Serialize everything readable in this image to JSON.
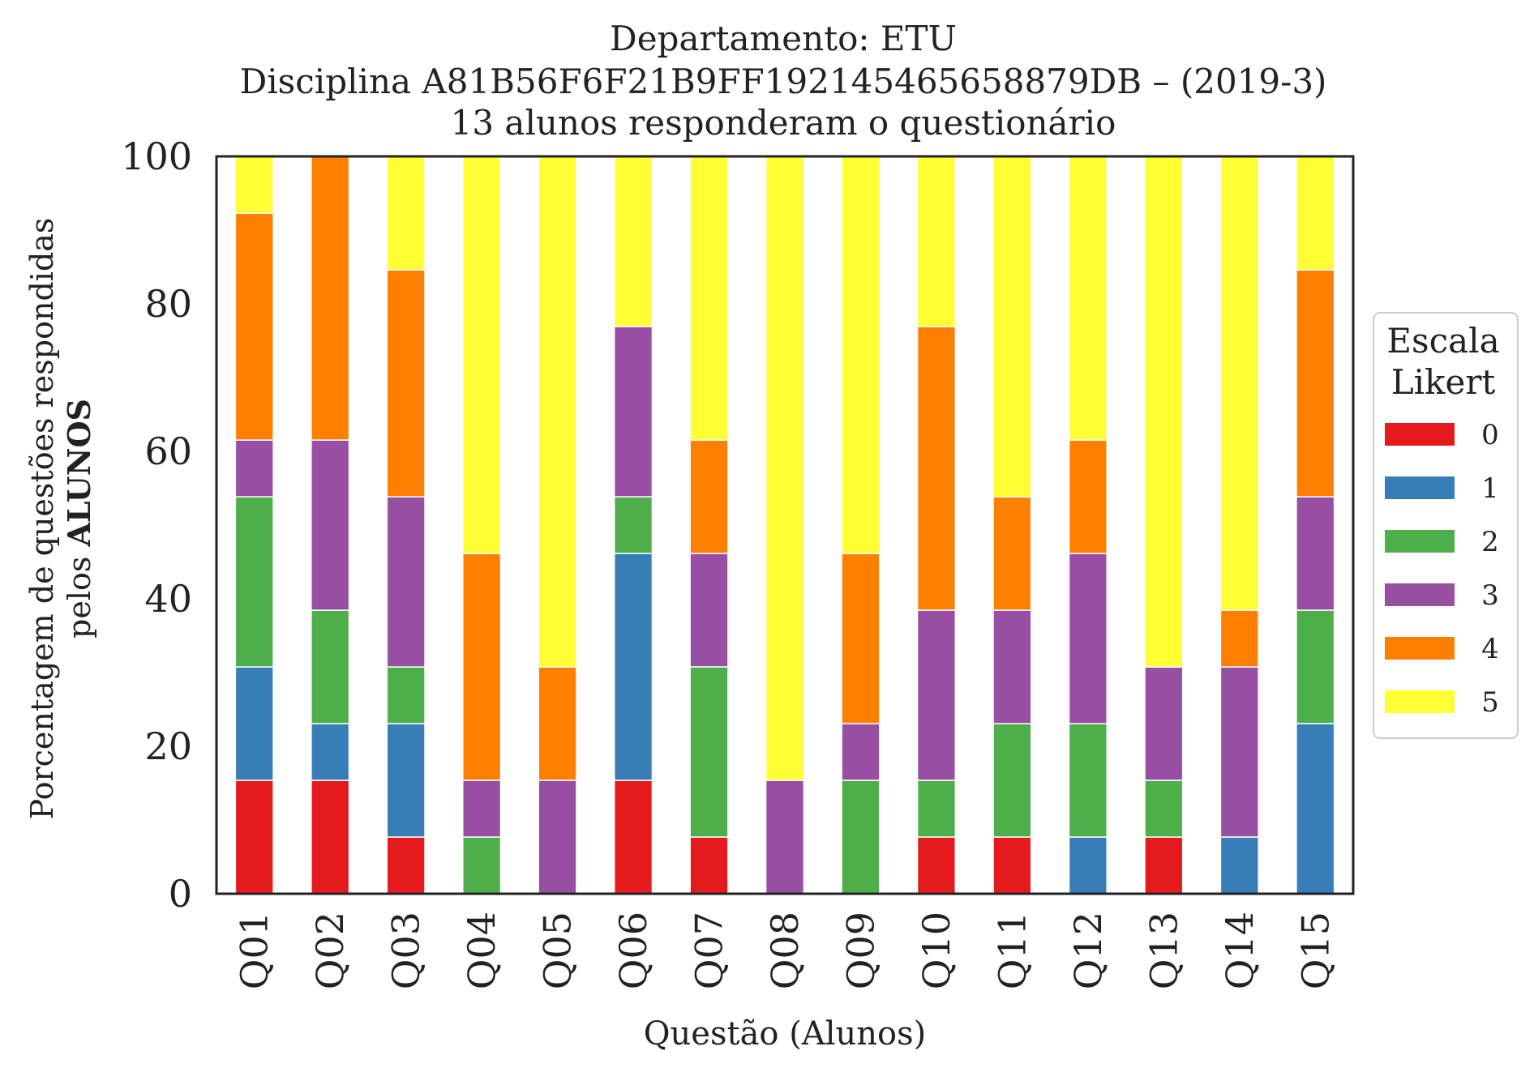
{
  "chart_data": {
    "type": "bar",
    "stacked": true,
    "title": [
      "Departamento: ETU",
      "Disciplina A81B56F6F21B9FF192145465658879DB – (2019-3)",
      "13 alunos responderam o questionário"
    ],
    "xlabel": "Questão (Alunos)",
    "ylabel_line1": "Porcentagem de questões respondidas",
    "ylabel_line2_prefix": "pelos ",
    "ylabel_line2_bold": "ALUNOS",
    "ylim": [
      0,
      100
    ],
    "yticks": [
      0,
      20,
      40,
      60,
      80,
      100
    ],
    "categories": [
      "Q01",
      "Q02",
      "Q03",
      "Q04",
      "Q05",
      "Q06",
      "Q07",
      "Q08",
      "Q09",
      "Q10",
      "Q11",
      "Q12",
      "Q13",
      "Q14",
      "Q15"
    ],
    "legend": {
      "title_line1": "Escala",
      "title_line2": "Likert",
      "placement": "right"
    },
    "series": [
      {
        "name": "0",
        "color": "#e41a1c",
        "values": [
          15.38,
          15.38,
          7.69,
          0,
          0,
          15.38,
          7.69,
          0,
          0,
          7.69,
          7.69,
          0,
          7.69,
          0,
          0
        ]
      },
      {
        "name": "1",
        "color": "#377eb8",
        "values": [
          15.38,
          7.69,
          15.38,
          0,
          0,
          30.77,
          0,
          0,
          0,
          0,
          0,
          7.69,
          0,
          7.69,
          23.08
        ]
      },
      {
        "name": "2",
        "color": "#4daf4a",
        "values": [
          23.08,
          15.38,
          7.69,
          7.69,
          0,
          7.69,
          23.08,
          0,
          15.38,
          7.69,
          15.38,
          15.38,
          7.69,
          0,
          15.38
        ]
      },
      {
        "name": "3",
        "color": "#984ea3",
        "values": [
          7.69,
          23.08,
          23.08,
          7.69,
          15.38,
          23.08,
          15.38,
          15.38,
          7.69,
          23.08,
          15.38,
          23.08,
          15.38,
          23.08,
          15.38
        ]
      },
      {
        "name": "4",
        "color": "#ff7f00",
        "values": [
          30.77,
          38.46,
          30.77,
          30.77,
          15.38,
          0,
          15.38,
          0,
          23.08,
          38.46,
          15.38,
          15.38,
          0,
          7.69,
          30.77
        ]
      },
      {
        "name": "5",
        "color": "#ffff33",
        "values": [
          7.69,
          0,
          15.38,
          53.85,
          69.23,
          23.08,
          38.46,
          84.62,
          53.85,
          23.08,
          46.15,
          38.46,
          69.23,
          61.54,
          15.38
        ]
      }
    ]
  }
}
